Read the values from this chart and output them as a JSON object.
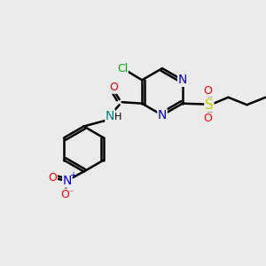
{
  "bg_color": "#ebebeb",
  "atom_colors": {
    "C": "#000000",
    "N": "#0000cc",
    "O": "#ff0000",
    "S": "#cccc00",
    "Cl": "#00aa00",
    "H": "#000000",
    "NH": "#008080"
  },
  "bond_color": "#000000",
  "bond_width": 1.8,
  "font_size": 9,
  "fig_size": [
    3.0,
    3.0
  ],
  "dpi": 100,
  "xlim": [
    0,
    10
  ],
  "ylim": [
    0,
    10
  ]
}
